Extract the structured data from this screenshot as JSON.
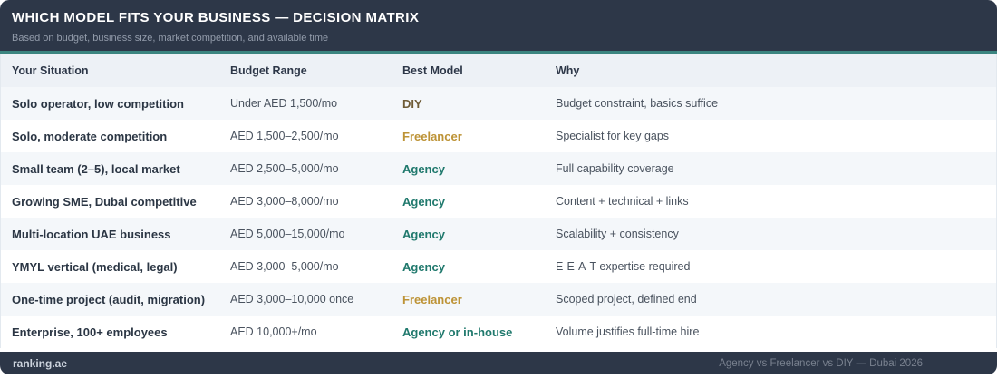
{
  "header": {
    "title": "WHICH MODEL FITS YOUR BUSINESS — DECISION MATRIX",
    "subtitle": "Based on budget, business size, market competition, and available time"
  },
  "table": {
    "columns": [
      "Your Situation",
      "Budget Range",
      "Best Model",
      "Why"
    ],
    "rows": [
      {
        "situation": "Solo operator, low competition",
        "budget": "Under AED 1,500/mo",
        "model": "DIY",
        "why": "Budget constraint, basics suffice"
      },
      {
        "situation": "Solo, moderate competition",
        "budget": "AED 1,500–2,500/mo",
        "model": "Freelancer",
        "why": "Specialist for key gaps"
      },
      {
        "situation": "Small team (2–5), local market",
        "budget": "AED 2,500–5,000/mo",
        "model": "Agency",
        "why": "Full capability coverage"
      },
      {
        "situation": "Growing SME, Dubai competitive",
        "budget": "AED 3,000–8,000/mo",
        "model": "Agency",
        "why": "Content + technical + links"
      },
      {
        "situation": "Multi-location UAE business",
        "budget": "AED 5,000–15,000/mo",
        "model": "Agency",
        "why": "Scalability + consistency"
      },
      {
        "situation": "YMYL vertical (medical, legal)",
        "budget": "AED 3,000–5,000/mo",
        "model": "Agency",
        "why": "E-E-A-T expertise required"
      },
      {
        "situation": "One-time project (audit, migration)",
        "budget": "AED 3,000–10,000 once",
        "model": "Freelancer",
        "why": "Scoped project, defined end"
      },
      {
        "situation": "Enterprise, 100+ employees",
        "budget": "AED 10,000+/mo",
        "model": "Agency or in-house",
        "why": "Volume justifies full-time hire"
      }
    ]
  },
  "footer": {
    "brand": "ranking.ae",
    "caption": "Agency vs Freelancer vs DIY — Dubai 2026"
  },
  "colors": {
    "header_bg": "#2d3748",
    "accent_teal": "#3b8580",
    "thead_bg": "#edf1f6",
    "row_tint": "#f4f7fa",
    "subtitle_fg": "#939cab",
    "caption_fg": "#79818f",
    "model_diy": "#6e5b36",
    "model_freelancer": "#bd9336",
    "model_agency": "#20796d"
  },
  "chart_data": {
    "type": "table",
    "title": "WHICH MODEL FITS YOUR BUSINESS — DECISION MATRIX",
    "subtitle": "Based on budget, business size, market competition, and available time",
    "columns": [
      "Your Situation",
      "Budget Range",
      "Best Model",
      "Why"
    ],
    "rows": [
      [
        "Solo operator, low competition",
        "Under AED 1,500/mo",
        "DIY",
        "Budget constraint, basics suffice"
      ],
      [
        "Solo, moderate competition",
        "AED 1,500–2,500/mo",
        "Freelancer",
        "Specialist for key gaps"
      ],
      [
        "Small team (2–5), local market",
        "AED 2,500–5,000/mo",
        "Agency",
        "Full capability coverage"
      ],
      [
        "Growing SME, Dubai competitive",
        "AED 3,000–8,000/mo",
        "Agency",
        "Content + technical + links"
      ],
      [
        "Multi-location UAE business",
        "AED 5,000–15,000/mo",
        "Agency",
        "Scalability + consistency"
      ],
      [
        "YMYL vertical (medical, legal)",
        "AED 3,000–5,000/mo",
        "Agency",
        "E-E-A-T expertise required"
      ],
      [
        "One-time project (audit, migration)",
        "AED 3,000–10,000 once",
        "Freelancer",
        "Scoped project, defined end"
      ],
      [
        "Enterprise, 100+ employees",
        "AED 10,000+/mo",
        "Agency or in-house",
        "Volume justifies full-time hire"
      ]
    ]
  }
}
